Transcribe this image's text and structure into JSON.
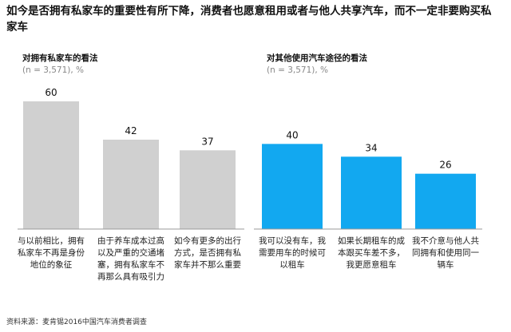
{
  "title": "如今是否拥有私家车的重要性有所下降，消费者也愿意租用或者与他人共享汽车，而不一定非要购买私家车",
  "source": "资料来源：麦肯锡2016中国汽车消费者调查",
  "chart_data": [
    {
      "type": "bar",
      "title": "对拥有私家车的看法",
      "subtitle": "(n = 3,571), %",
      "categories": [
        "与以前相比，拥有私家车不再是身份地位的象征",
        "由于养车成本过高以及严重的交通堵塞，拥有私家车不再那么具有吸引力",
        "如今有更多的出行方式，是否拥有私家车并不那么重要"
      ],
      "values": [
        60,
        42,
        37
      ],
      "color": "#d0d0d0",
      "ylim": [
        0,
        60
      ]
    },
    {
      "type": "bar",
      "title": "对其他使用汽车途径的看法",
      "subtitle": "(n = 3,571), %",
      "categories": [
        "我可以没有车，我需要用车的时候可以租车",
        "如果长期租车的成本跟买车差不多，我更愿意租车",
        "我不介意与他人共同拥有和使用同一辆车"
      ],
      "values": [
        40,
        34,
        26
      ],
      "color": "#12a8f0",
      "ylim": [
        0,
        60
      ]
    }
  ]
}
